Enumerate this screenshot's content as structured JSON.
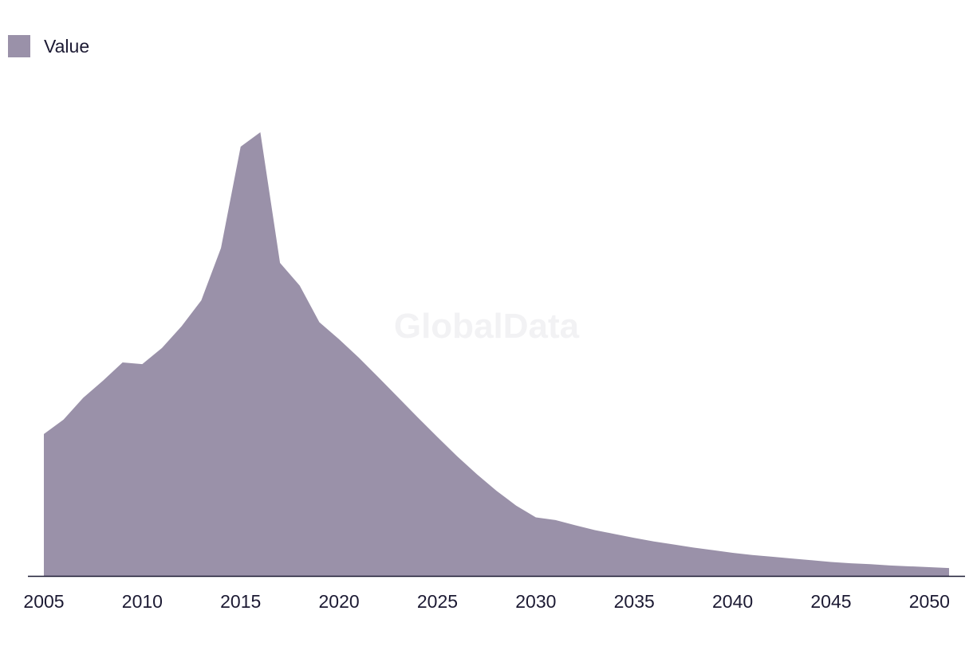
{
  "chart_data": {
    "type": "area",
    "title": "",
    "xlabel": "",
    "ylabel": "",
    "x": [
      2005,
      2006,
      2007,
      2008,
      2009,
      2010,
      2011,
      2012,
      2013,
      2014,
      2015,
      2016,
      2017,
      2018,
      2019,
      2020,
      2021,
      2022,
      2023,
      2024,
      2025,
      2026,
      2027,
      2028,
      2029,
      2030,
      2031,
      2032,
      2033,
      2034,
      2035,
      2036,
      2037,
      2038,
      2039,
      2040,
      2041,
      2042,
      2043,
      2044,
      2045,
      2046,
      2047,
      2048,
      2049,
      2050,
      2051
    ],
    "series": [
      {
        "name": "Value",
        "color": "#9a91a9",
        "values": [
          32.5,
          35.8,
          40.8,
          44.7,
          48.9,
          48.5,
          52.2,
          57.2,
          63.1,
          75.1,
          98.3,
          101.6,
          71.7,
          66.5,
          58.1,
          54.2,
          50,
          45.5,
          40.9,
          36.3,
          31.8,
          27.4,
          23.3,
          19.5,
          16.1,
          13.4,
          12.8,
          11.6,
          10.5,
          9.6,
          8.7,
          7.9,
          7.2,
          6.5,
          5.9,
          5.3,
          4.8,
          4.4,
          4,
          3.6,
          3.2,
          2.9,
          2.7,
          2.4,
          2.2,
          2,
          1.8
        ]
      }
    ],
    "xticks": [
      "2005",
      "2010",
      "2015",
      "2020",
      "2025",
      "2030",
      "2035",
      "2040",
      "2045",
      "2050"
    ],
    "ylim": [
      0,
      110
    ],
    "grid": false,
    "legend": "top-left"
  },
  "watermark": "GlobalData"
}
